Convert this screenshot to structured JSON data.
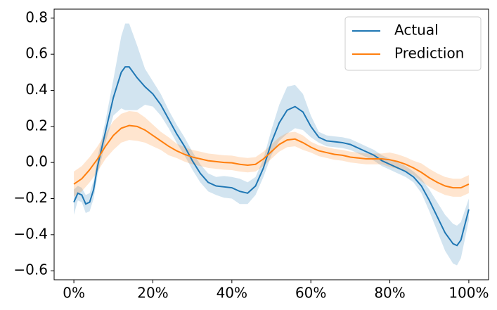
{
  "chart_data": {
    "type": "line",
    "xlim": [
      -5,
      105
    ],
    "xticks": [
      {
        "value": 0,
        "label": "0%"
      },
      {
        "value": 20,
        "label": "20%"
      },
      {
        "value": 40,
        "label": "40%"
      },
      {
        "value": 60,
        "label": "60%"
      },
      {
        "value": 80,
        "label": "80%"
      },
      {
        "value": 100,
        "label": "100%"
      }
    ],
    "ylim": [
      -0.65,
      0.85
    ],
    "yticks": [
      {
        "value": -0.6,
        "label": "−0.6"
      },
      {
        "value": -0.4,
        "label": "−0.4"
      },
      {
        "value": -0.2,
        "label": "−0.2"
      },
      {
        "value": 0,
        "label": "0.0"
      },
      0.2,
      0.4,
      0.6,
      0.8
    ],
    "legend": "upper right",
    "series": [
      {
        "name": "Actual",
        "color": "#1f77b4",
        "x": [
          0,
          1,
          2,
          3,
          4,
          5,
          6,
          8,
          10,
          12,
          13,
          14,
          16,
          18,
          20,
          22,
          24,
          26,
          28,
          30,
          32,
          34,
          36,
          38,
          40,
          42,
          44,
          46,
          48,
          50,
          52,
          54,
          56,
          58,
          60,
          62,
          64,
          66,
          68,
          70,
          72,
          74,
          76,
          78,
          80,
          82,
          84,
          86,
          88,
          90,
          92,
          94,
          96,
          97,
          98,
          100
        ],
        "values": [
          -0.22,
          -0.17,
          -0.18,
          -0.23,
          -0.22,
          -0.15,
          -0.02,
          0.17,
          0.36,
          0.5,
          0.53,
          0.53,
          0.47,
          0.42,
          0.38,
          0.32,
          0.24,
          0.16,
          0.09,
          0.01,
          -0.06,
          -0.11,
          -0.13,
          -0.135,
          -0.14,
          -0.16,
          -0.17,
          -0.13,
          -0.03,
          0.11,
          0.22,
          0.29,
          0.31,
          0.28,
          0.2,
          0.14,
          0.12,
          0.115,
          0.11,
          0.1,
          0.08,
          0.06,
          0.04,
          0.01,
          -0.01,
          -0.03,
          -0.05,
          -0.08,
          -0.13,
          -0.21,
          -0.3,
          -0.39,
          -0.45,
          -0.46,
          -0.43,
          -0.26
        ],
        "errors": [
          0.07,
          0.04,
          0.04,
          0.05,
          0.05,
          0.05,
          0.05,
          0.06,
          0.1,
          0.2,
          0.24,
          0.24,
          0.18,
          0.1,
          0.07,
          0.06,
          0.05,
          0.05,
          0.05,
          0.05,
          0.05,
          0.05,
          0.05,
          0.06,
          0.06,
          0.07,
          0.06,
          0.05,
          0.05,
          0.07,
          0.1,
          0.13,
          0.12,
          0.1,
          0.06,
          0.03,
          0.03,
          0.03,
          0.03,
          0.03,
          0.03,
          0.03,
          0.03,
          0.03,
          0.03,
          0.03,
          0.03,
          0.03,
          0.04,
          0.06,
          0.08,
          0.1,
          0.11,
          0.11,
          0.1,
          0.06
        ]
      },
      {
        "name": "Prediction",
        "color": "#ff7f0e",
        "x": [
          0,
          2,
          4,
          6,
          8,
          10,
          12,
          14,
          16,
          18,
          20,
          22,
          24,
          26,
          28,
          30,
          32,
          34,
          36,
          38,
          40,
          42,
          44,
          46,
          48,
          50,
          52,
          54,
          56,
          58,
          60,
          62,
          64,
          66,
          68,
          70,
          72,
          74,
          76,
          78,
          80,
          82,
          84,
          86,
          88,
          90,
          92,
          94,
          96,
          98,
          100
        ],
        "values": [
          -0.12,
          -0.09,
          -0.04,
          0.02,
          0.09,
          0.15,
          0.19,
          0.205,
          0.2,
          0.18,
          0.15,
          0.12,
          0.09,
          0.065,
          0.045,
          0.03,
          0.02,
          0.01,
          0.005,
          0,
          -0.002,
          -0.01,
          -0.015,
          -0.01,
          0.02,
          0.06,
          0.1,
          0.125,
          0.13,
          0.11,
          0.085,
          0.065,
          0.055,
          0.045,
          0.04,
          0.03,
          0.025,
          0.02,
          0.02,
          0.02,
          0.015,
          0.005,
          -0.01,
          -0.03,
          -0.055,
          -0.085,
          -0.11,
          -0.13,
          -0.14,
          -0.14,
          -0.12
        ],
        "errors": [
          0.07,
          0.07,
          0.07,
          0.07,
          0.07,
          0.08,
          0.08,
          0.08,
          0.08,
          0.07,
          0.06,
          0.05,
          0.05,
          0.04,
          0.04,
          0.04,
          0.04,
          0.04,
          0.04,
          0.04,
          0.04,
          0.04,
          0.04,
          0.04,
          0.04,
          0.04,
          0.04,
          0.04,
          0.04,
          0.04,
          0.03,
          0.03,
          0.03,
          0.03,
          0.03,
          0.03,
          0.03,
          0.03,
          0.03,
          0.03,
          0.04,
          0.04,
          0.04,
          0.04,
          0.05,
          0.05,
          0.05,
          0.05,
          0.05,
          0.05,
          0.05
        ]
      }
    ]
  }
}
